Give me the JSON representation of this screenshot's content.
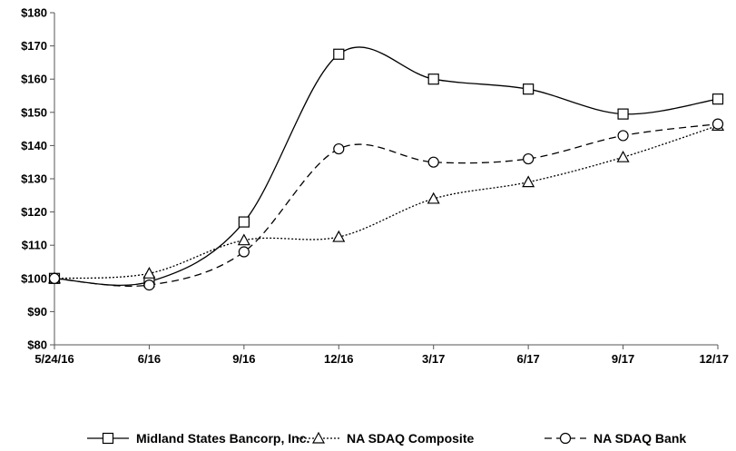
{
  "chart_data": {
    "type": "line",
    "categories": [
      "5/24/16",
      "6/16",
      "9/16",
      "12/16",
      "3/17",
      "6/17",
      "9/17",
      "12/17"
    ],
    "y_tick_labels": [
      "$80",
      "$90",
      "$100",
      "$110",
      "$120",
      "$130",
      "$140",
      "$150",
      "$160",
      "$170",
      "$180"
    ],
    "ylim": [
      80,
      180
    ],
    "y_step": 10,
    "grid": false,
    "legend_position": "bottom",
    "series": [
      {
        "name": "Midland States Bancorp, Inc.",
        "marker": "square",
        "dash": "solid",
        "values": [
          100,
          99,
          117,
          167.5,
          160,
          157,
          149.5,
          154
        ]
      },
      {
        "name": "NA SDAQ Composite",
        "marker": "triangle",
        "dash": "dotted",
        "values": [
          100,
          101.5,
          111.5,
          112.5,
          124,
          129,
          136.5,
          146
        ]
      },
      {
        "name": "NA SDAQ Bank",
        "marker": "circle",
        "dash": "dashed",
        "values": [
          100,
          98,
          108,
          139,
          135,
          136,
          143,
          146.5
        ]
      }
    ],
    "colors": {
      "line": "#000000",
      "marker_fill": "#ffffff"
    }
  }
}
